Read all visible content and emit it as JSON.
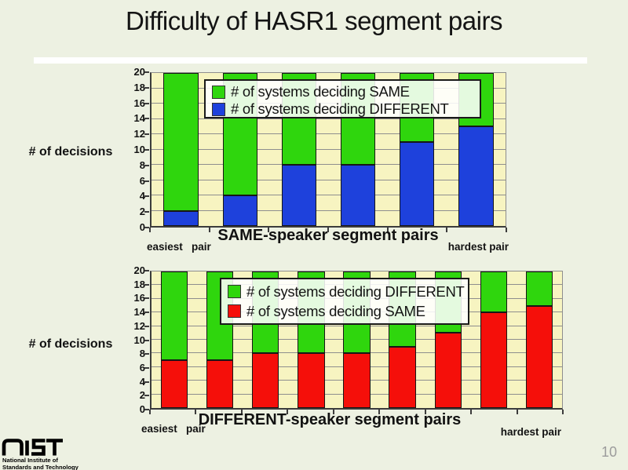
{
  "slide": {
    "title": "Difficulty of HASR1 segment pairs",
    "page_number": "10",
    "logo": {
      "name": "NIST",
      "caption_line1": "National Institute of",
      "caption_line2": "Standards and Technology"
    }
  },
  "colors": {
    "slide_bg": "#EDF1E2",
    "plot_bg": "#F7F4C1",
    "green": "#2FD60D",
    "blue": "#1E41DC",
    "red": "#F50F0A",
    "grid": "#8E8E8E",
    "axis": "#3C3C3C",
    "page_number": "#9C9C9C"
  },
  "chart_data": [
    {
      "type": "bar",
      "stacked": true,
      "title": "",
      "xlabel": "SAME-speaker segment pairs",
      "ylabel": "# of decisions",
      "ylim": [
        0,
        20
      ],
      "ytick_step": 2,
      "grid": "horizontal",
      "x_left_annotation": "easiest   pair",
      "x_right_annotation": "hardest pair",
      "series": [
        {
          "name": "# of systems deciding DIFFERENT",
          "color_key": "blue",
          "values": [
            2,
            4,
            8,
            8,
            11,
            13
          ]
        },
        {
          "name": "# of systems deciding SAME",
          "color_key": "green",
          "values": [
            18,
            16,
            12,
            12,
            9,
            7
          ]
        }
      ],
      "legend": {
        "position": "top-center",
        "entries": [
          {
            "label": "# of systems deciding SAME",
            "color_key": "green"
          },
          {
            "label": "# of systems deciding DIFFERENT",
            "color_key": "blue"
          }
        ]
      }
    },
    {
      "type": "bar",
      "stacked": true,
      "title": "",
      "xlabel": "DIFFERENT-speaker segment pairs",
      "ylabel": "# of decisions",
      "ylim": [
        0,
        20
      ],
      "ytick_step": 2,
      "grid": "horizontal",
      "x_left_annotation": "easiest   pair",
      "x_right_annotation": "hardest pair",
      "series": [
        {
          "name": "# of systems deciding SAME",
          "color_key": "red",
          "values": [
            7,
            7,
            8,
            8,
            8,
            9,
            11,
            14,
            15
          ]
        },
        {
          "name": "# of systems deciding DIFFERENT",
          "color_key": "green",
          "values": [
            13,
            13,
            12,
            12,
            12,
            11,
            9,
            6,
            5
          ]
        }
      ],
      "legend": {
        "position": "top-center",
        "entries": [
          {
            "label": "# of systems deciding DIFFERENT",
            "color_key": "green"
          },
          {
            "label": "# of systems deciding SAME",
            "color_key": "red"
          }
        ]
      }
    }
  ]
}
